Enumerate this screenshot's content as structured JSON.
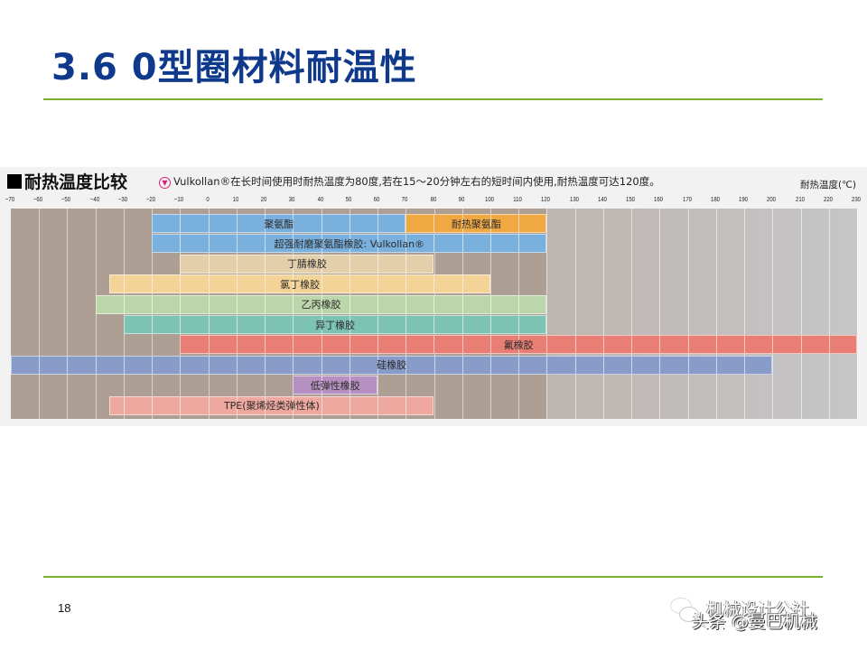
{
  "slide": {
    "title": "3.6 0型圈材料耐温性",
    "page_number": "18",
    "accent_color": "#7ab32b",
    "title_color": "#0f3a8c"
  },
  "panel": {
    "heading": "耐热温度比较",
    "note_icon": "pin-icon",
    "note": "Vulkollan®在长时间使用时耐热温度为80度,若在15～20分钟左右的短时间内使用,耐热温度可达120度。",
    "unit_label": "耐热温度(℃)"
  },
  "watermark": {
    "line1": "机械设计公社",
    "line2": "头条 @曼巴机械"
  },
  "chart_data": {
    "type": "bar",
    "orientation": "horizontal-range",
    "title": "耐热温度比较",
    "xlabel": "耐热温度(℃)",
    "ylabel": "",
    "xlim": [
      -70,
      230
    ],
    "x_ticks": [
      -70,
      -60,
      -50,
      -40,
      -30,
      -20,
      -10,
      0,
      10,
      20,
      30,
      40,
      50,
      60,
      70,
      80,
      90,
      100,
      110,
      120,
      130,
      140,
      150,
      160,
      170,
      180,
      190,
      200,
      210,
      220,
      230
    ],
    "grid": true,
    "legend": "none",
    "series": [
      {
        "name": "聚氨酯",
        "min": -20,
        "max": 70,
        "color": "#79b0de",
        "row": 0
      },
      {
        "name": "耐热聚氨酯",
        "min": 70,
        "max": 120,
        "color": "#f0a843",
        "row": 0
      },
      {
        "name": "超强耐磨聚氨酯橡胶: Vulkollan®",
        "min": -20,
        "max": 120,
        "color": "#79b0de",
        "row": 1
      },
      {
        "name": "丁腈橡胶",
        "min": -10,
        "max": 80,
        "color": "#e3d0ab",
        "row": 2
      },
      {
        "name": "氯丁橡胶",
        "min": -35,
        "max": 100,
        "color": "#f4d397",
        "row": 3
      },
      {
        "name": "乙丙橡胶",
        "min": -40,
        "max": 120,
        "color": "#bcd6ab",
        "row": 4
      },
      {
        "name": "异丁橡胶",
        "min": -30,
        "max": 120,
        "color": "#7dc3b3",
        "row": 5
      },
      {
        "name": "氟橡胶",
        "min": -10,
        "max": 230,
        "color": "#e97e74",
        "row": 6
      },
      {
        "name": "硅橡胶",
        "min": -70,
        "max": 200,
        "color": "#899bc8",
        "row": 7
      },
      {
        "name": "低弹性橡胶",
        "min": 30,
        "max": 60,
        "color": "#b590c0",
        "row": 8
      },
      {
        "name": "TPE(聚烯烃类弹性体)",
        "min": -35,
        "max": 80,
        "color": "#eea8a0",
        "row": 9
      }
    ],
    "annotations": [
      "Vulkollan®在长时间使用时耐热温度为80度,若在15～20分钟左右的短时间内使用,耐热温度可达120度。"
    ]
  }
}
